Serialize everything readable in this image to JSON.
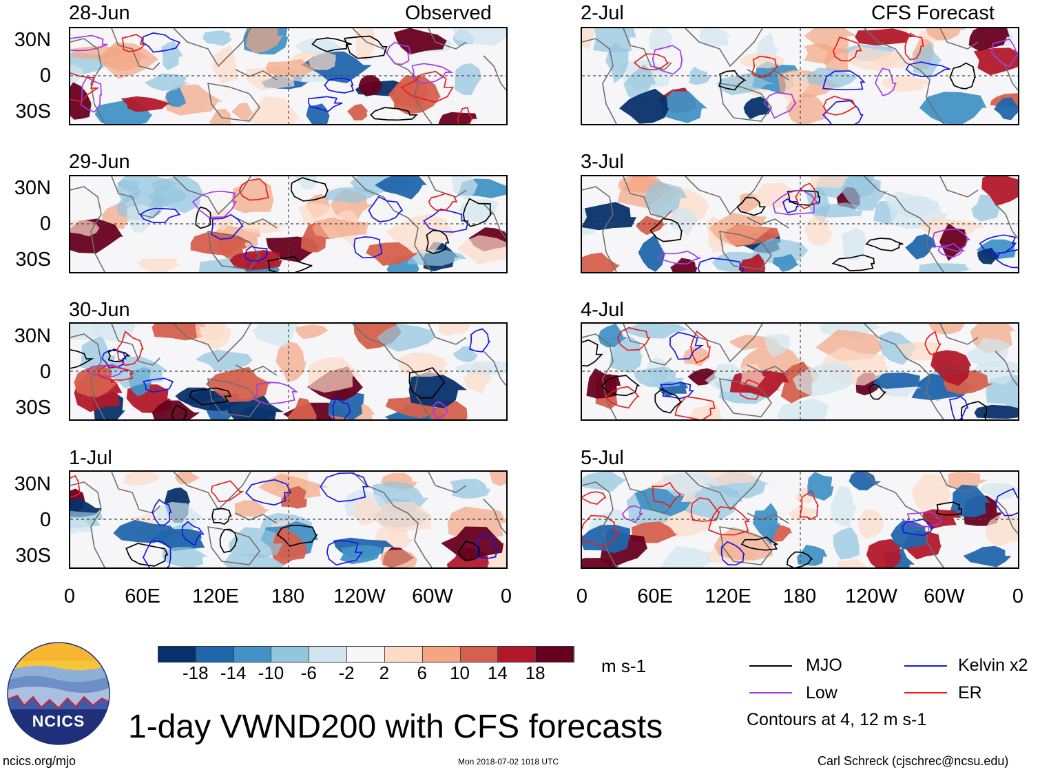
{
  "header": {
    "left_label": "Observed",
    "right_label": "CFS Forecast"
  },
  "colors": {
    "mjo": "#000000",
    "kelvin": "#1515e6",
    "low": "#a33be6",
    "er": "#e61e1e",
    "coast": "#6e6e6e",
    "scale": [
      "#08306b",
      "#2166ac",
      "#4292c6",
      "#92c5de",
      "#d1e5f0",
      "#f7f7f7",
      "#fddbc7",
      "#f4a582",
      "#d6604d",
      "#b2182b",
      "#67001f"
    ]
  },
  "panels": [
    {
      "date": "28-Jun"
    },
    {
      "date": "29-Jun"
    },
    {
      "date": "30-Jun"
    },
    {
      "date": "1-Jul"
    },
    {
      "date": "2-Jul"
    },
    {
      "date": "3-Jul"
    },
    {
      "date": "4-Jul"
    },
    {
      "date": "5-Jul"
    }
  ],
  "y_ticks": [
    "30N",
    "0",
    "30S"
  ],
  "x_ticks": [
    "0",
    "60E",
    "120E",
    "180",
    "120W",
    "60W",
    "0"
  ],
  "colorbar": {
    "labels": [
      "-18",
      "-14",
      "-10",
      "-6",
      "-2",
      "2",
      "6",
      "10",
      "14",
      "18"
    ],
    "units": "m s-1"
  },
  "legend": {
    "mjo": "MJO",
    "kelvin": "Kelvin x2",
    "low": "Low",
    "er": "ER",
    "note": "Contours at 4, 12 m s-1"
  },
  "logo_text": "NCICS",
  "title": "1-day VWND200 with CFS forecasts",
  "footer": {
    "left": "ncics.org/mjo",
    "center": "Mon 2018-07-02 1018 UTC",
    "right": "Carl Schreck (cjschrec@ncsu.edu)"
  }
}
